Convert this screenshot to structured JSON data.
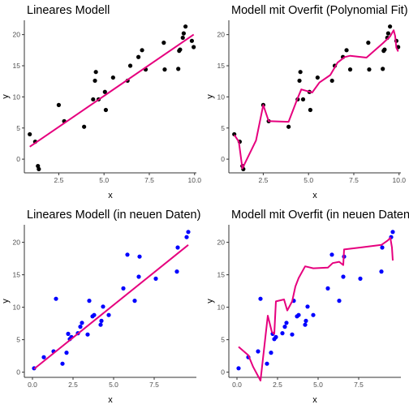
{
  "colors": {
    "background": "#ffffff",
    "axis": "#333333",
    "points_fit": "#000000",
    "points_new": "#0000ff",
    "line": "#e6007e"
  },
  "chart_data": [
    {
      "type": "scatter",
      "title": "Lineares Modell",
      "xlabel": "x",
      "ylabel": "y",
      "xlim": [
        0.6,
        10.1
      ],
      "ylim": [
        -2.2,
        22.3
      ],
      "xticks": [
        2.5,
        5.0,
        7.5,
        10.0
      ],
      "xtick_labels": [
        "2.5",
        "5.0",
        "7.5",
        "10.0"
      ],
      "yticks": [
        0,
        5,
        10,
        15,
        20
      ],
      "ytick_labels": [
        "0",
        "5",
        "10",
        "15",
        "20"
      ],
      "grid": false,
      "points": {
        "color": "#000000",
        "x": [
          0.9,
          1.2,
          1.35,
          1.4,
          2.5,
          2.8,
          3.9,
          4.4,
          4.5,
          4.55,
          4.7,
          5.05,
          5.1,
          5.5,
          6.3,
          6.45,
          6.9,
          7.1,
          7.3,
          8.3,
          8.35,
          9.1,
          9.15,
          9.2,
          9.35,
          9.4,
          9.5,
          9.85,
          9.95
        ],
        "y": [
          4.0,
          2.8,
          -1.1,
          -1.6,
          8.7,
          6.1,
          5.2,
          9.6,
          12.6,
          14.0,
          9.6,
          10.8,
          7.9,
          13.1,
          12.6,
          15.0,
          16.4,
          17.5,
          14.4,
          18.7,
          14.4,
          14.5,
          17.4,
          17.6,
          19.5,
          20.2,
          21.3,
          19.0,
          18.0
        ]
      },
      "line": {
        "color": "#e6007e",
        "x": [
          0.9,
          9.95
        ],
        "y": [
          2.0,
          20.0
        ]
      }
    },
    {
      "type": "scatter",
      "title": "Modell mit Overfit (Polynomial Fit)",
      "xlabel": "x",
      "ylabel": "y",
      "xlim": [
        0.6,
        10.1
      ],
      "ylim": [
        -2.2,
        22.3
      ],
      "xticks": [
        2.5,
        5.0,
        7.5,
        10.0
      ],
      "xtick_labels": [
        "2.5",
        "5.0",
        "7.5",
        "10.0"
      ],
      "yticks": [
        0,
        5,
        10,
        15,
        20
      ],
      "ytick_labels": [
        "0",
        "5",
        "10",
        "15",
        "20"
      ],
      "grid": false,
      "points": {
        "color": "#000000",
        "x": [
          0.9,
          1.2,
          1.35,
          1.4,
          2.5,
          2.8,
          3.9,
          4.4,
          4.5,
          4.55,
          4.7,
          5.05,
          5.1,
          5.5,
          6.3,
          6.45,
          6.9,
          7.1,
          7.3,
          8.3,
          8.35,
          9.1,
          9.15,
          9.2,
          9.35,
          9.4,
          9.5,
          9.85,
          9.95
        ],
        "y": [
          4.0,
          2.8,
          -1.1,
          -1.6,
          8.7,
          6.1,
          5.2,
          9.6,
          12.6,
          14.0,
          9.6,
          10.8,
          7.9,
          13.1,
          12.6,
          15.0,
          16.4,
          17.5,
          14.4,
          18.7,
          14.4,
          14.5,
          17.4,
          17.6,
          19.5,
          20.2,
          21.3,
          19.0,
          18.0
        ]
      },
      "line": {
        "color": "#e6007e",
        "x": [
          0.9,
          1.15,
          1.35,
          2.1,
          2.5,
          2.8,
          3.9,
          4.4,
          4.6,
          5.2,
          5.6,
          6.2,
          6.6,
          7.0,
          7.3,
          8.2,
          9.1,
          9.5,
          9.7,
          9.78,
          9.85,
          9.95
        ],
        "y": [
          3.9,
          2.8,
          -1.5,
          3.0,
          8.7,
          6.1,
          6.0,
          9.8,
          11.2,
          10.7,
          12.3,
          13.5,
          15.5,
          16.4,
          16.6,
          16.3,
          18.6,
          19.7,
          20.7,
          19.8,
          17.9,
          17.3
        ]
      }
    },
    {
      "type": "scatter",
      "title": "Lineares Modell (in neuen Daten)",
      "xlabel": "x",
      "ylabel": "y",
      "xlim": [
        -0.5,
        10.1
      ],
      "ylim": [
        -0.8,
        22.7
      ],
      "xticks": [
        0.0,
        2.5,
        5.0,
        7.5
      ],
      "xtick_labels": [
        "0.0",
        "2.5",
        "5.0",
        "7.5"
      ],
      "yticks": [
        0,
        5,
        10,
        15,
        20
      ],
      "ytick_labels": [
        "0",
        "5",
        "10",
        "15",
        "20"
      ],
      "grid": false,
      "points": {
        "color": "#0000ff",
        "x": [
          0.1,
          0.7,
          1.3,
          1.45,
          1.85,
          2.1,
          2.2,
          2.3,
          2.4,
          2.8,
          2.95,
          3.05,
          3.4,
          3.5,
          3.7,
          3.8,
          4.2,
          4.25,
          4.35,
          4.7,
          5.6,
          5.85,
          6.3,
          6.55,
          6.6,
          7.6,
          8.9,
          8.95,
          9.5,
          9.6
        ],
        "y": [
          0.6,
          2.3,
          3.2,
          11.3,
          1.3,
          3.0,
          5.9,
          5.1,
          5.4,
          6.0,
          7.0,
          7.6,
          5.8,
          11.0,
          8.6,
          8.8,
          7.3,
          7.9,
          10.1,
          8.8,
          12.9,
          18.1,
          11.0,
          14.7,
          17.8,
          14.4,
          15.5,
          19.2,
          20.8,
          21.6
        ]
      },
      "line": {
        "color": "#e6007e",
        "x": [
          0.1,
          9.6
        ],
        "y": [
          0.5,
          19.6
        ]
      }
    },
    {
      "type": "scatter",
      "title": "Modell mit Overfit (in neuen Daten)",
      "xlabel": "x",
      "ylabel": "y",
      "xlim": [
        -0.5,
        10.1
      ],
      "ylim": [
        -0.8,
        22.7
      ],
      "xticks": [
        0.0,
        2.5,
        5.0,
        7.5
      ],
      "xtick_labels": [
        "0.0",
        "2.5",
        "5.0",
        "7.5"
      ],
      "yticks": [
        0,
        5,
        10,
        15,
        20
      ],
      "ytick_labels": [
        "0",
        "5",
        "10",
        "15",
        "20"
      ],
      "grid": false,
      "points": {
        "color": "#0000ff",
        "x": [
          0.1,
          0.7,
          1.3,
          1.45,
          1.85,
          2.1,
          2.2,
          2.3,
          2.4,
          2.8,
          2.95,
          3.05,
          3.4,
          3.5,
          3.7,
          3.8,
          4.2,
          4.25,
          4.35,
          4.7,
          5.6,
          5.85,
          6.3,
          6.55,
          6.6,
          7.6,
          8.9,
          8.95,
          9.5,
          9.6
        ],
        "y": [
          0.6,
          2.3,
          3.2,
          11.3,
          1.3,
          3.0,
          5.9,
          5.1,
          5.4,
          6.0,
          7.0,
          7.6,
          5.8,
          11.0,
          8.6,
          8.8,
          7.3,
          7.9,
          10.1,
          8.8,
          12.9,
          18.1,
          11.0,
          14.7,
          17.8,
          14.4,
          15.5,
          19.2,
          20.8,
          21.6
        ]
      },
      "line": {
        "color": "#e6007e",
        "x": [
          0.1,
          0.7,
          1.0,
          1.45,
          1.9,
          2.15,
          2.3,
          2.4,
          2.9,
          3.1,
          3.4,
          3.6,
          3.8,
          4.2,
          4.7,
          5.6,
          5.9,
          6.3,
          6.55,
          6.6,
          7.6,
          8.9,
          9.3,
          9.45,
          9.55,
          9.6
        ],
        "y": [
          3.9,
          2.6,
          0.8,
          -1.3,
          8.7,
          6.2,
          5.9,
          10.9,
          11.2,
          9.5,
          10.9,
          13.2,
          14.5,
          16.3,
          16.0,
          16.1,
          16.8,
          17.0,
          16.5,
          18.9,
          19.2,
          19.6,
          20.3,
          20.7,
          19.2,
          17.2
        ]
      }
    }
  ]
}
